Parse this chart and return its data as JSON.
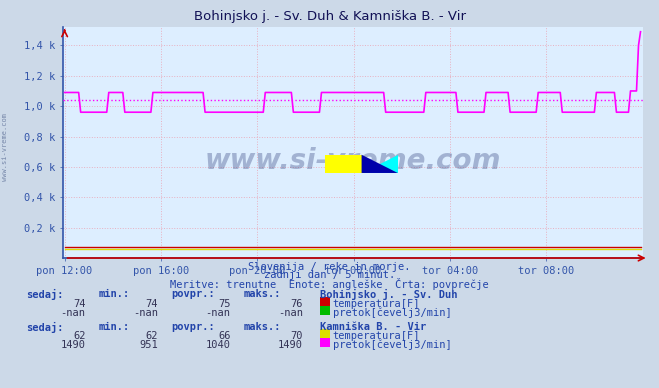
{
  "title": "Bohinjsko j. - Sv. Duh & Kamniška B. - Vir",
  "bg_color": "#ccd9e8",
  "plot_bg_color": "#ddeeff",
  "grid_color_dot": "#e8b0c0",
  "grid_color_solid": "#b8c8e0",
  "axis_color": "#3355aa",
  "title_color": "#111155",
  "text_color": "#2244aa",
  "ytick_labels": [
    "0,2 k",
    "0,4 k",
    "0,6 k",
    "0,8 k",
    "1,0 k",
    "1,2 k",
    "1,4 k"
  ],
  "ytick_values": [
    200,
    400,
    600,
    800,
    1000,
    1200,
    1400
  ],
  "ylim": [
    0,
    1520
  ],
  "xtick_labels": [
    "pon 12:00",
    "pon 16:00",
    "pon 20:00",
    "tor 00:00",
    "tor 04:00",
    "tor 08:00"
  ],
  "subtitle1": "Slovenija / reke in morje.",
  "subtitle2": "zadnji dan / 5 minut.",
  "subtitle3": "Meritve: trenutne  Enote: angleške  Črta: povprečje",
  "avg_line_color": "#ff00ff",
  "avg_line_value": 1040,
  "watermark_text": "www.si-vreme.com",
  "station1_name": "Bohinjsko j. - Sv. Duh",
  "station1_temp_color": "#cc0000",
  "station1_flow_color": "#00bb00",
  "station1_sedaj": "74",
  "station1_min": "74",
  "station1_povpr": "75",
  "station1_maks": "76",
  "station1_flow_sedaj": "-nan",
  "station1_flow_min": "-nan",
  "station1_flow_povpr": "-nan",
  "station1_flow_maks": "-nan",
  "station2_name": "Kamniška B. - Vir",
  "station2_temp_color": "#dddd00",
  "station2_flow_color": "#ff00ff",
  "station2_sedaj": "62",
  "station2_min": "62",
  "station2_povpr": "66",
  "station2_maks": "70",
  "station2_flow_sedaj": "1490",
  "station2_flow_min": "951",
  "station2_flow_povpr": "1040",
  "station2_flow_maks": "1490"
}
